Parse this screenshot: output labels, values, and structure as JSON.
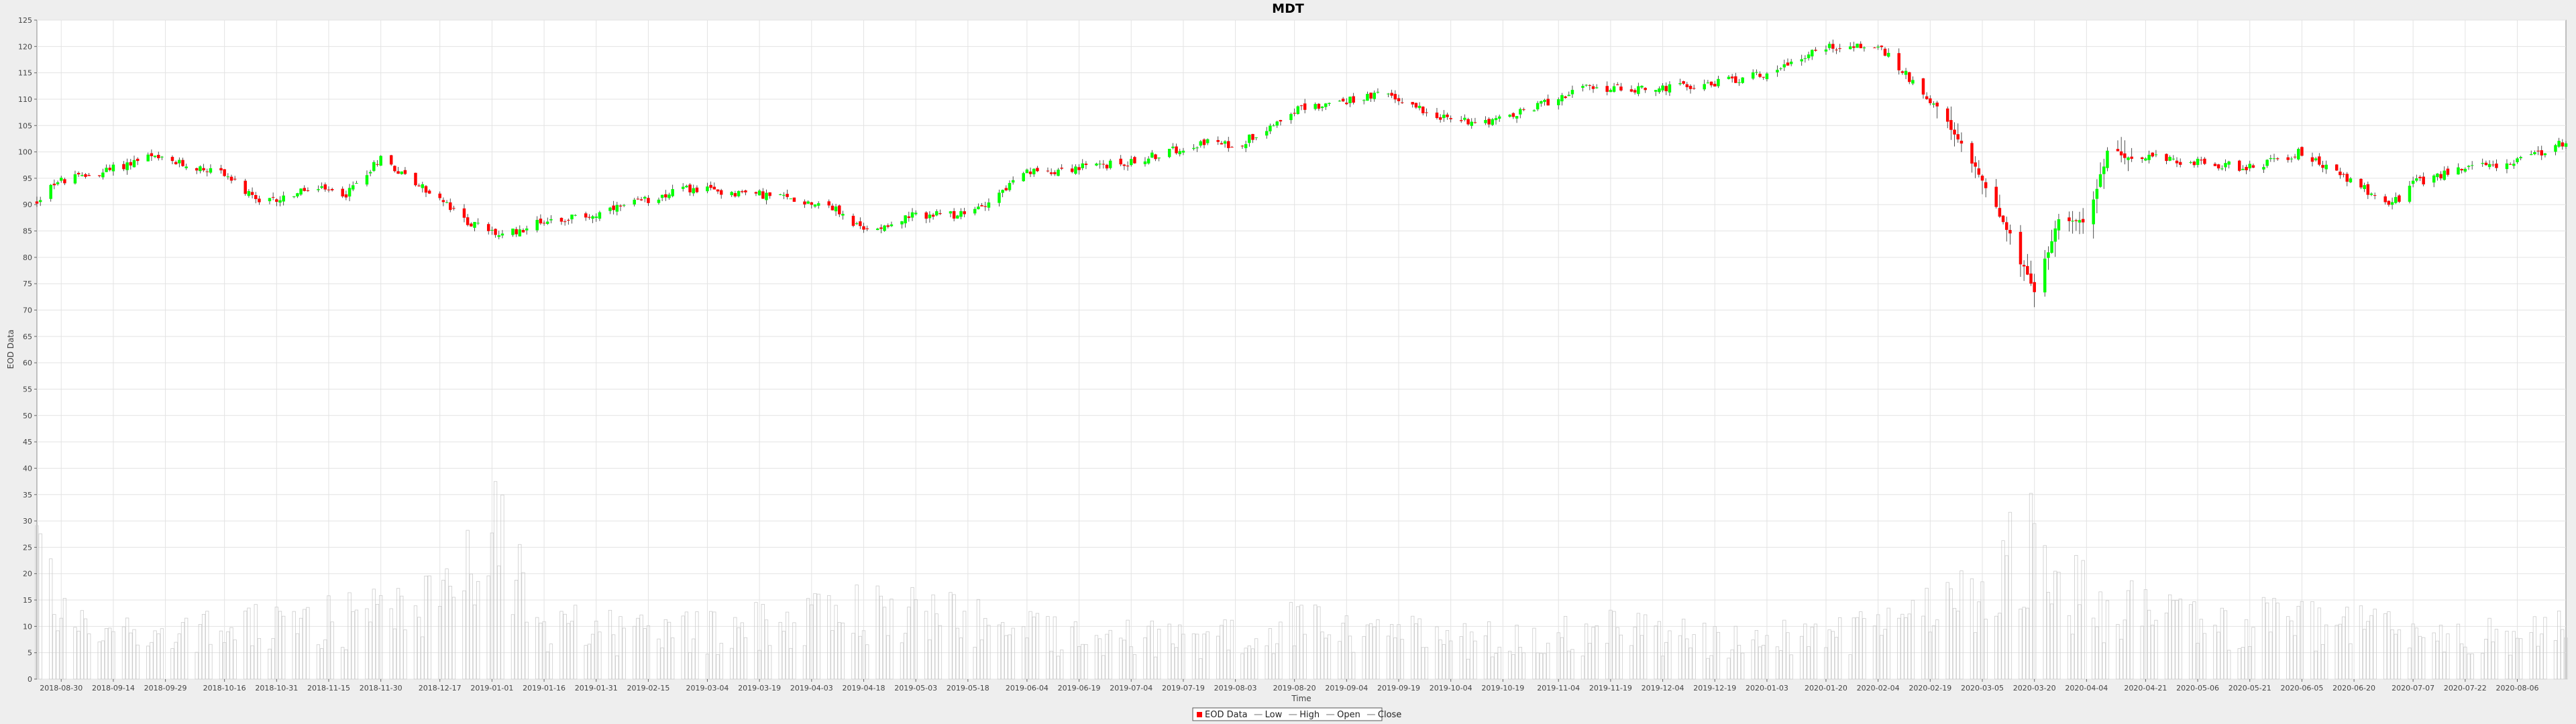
{
  "chart_data": {
    "type": "candlestick",
    "title": "MDT",
    "xlabel": "Time",
    "ylabel": "EOD Data",
    "ylim": [
      0,
      125
    ],
    "y_ticks": [
      0,
      5,
      10,
      15,
      20,
      25,
      30,
      35,
      40,
      45,
      50,
      55,
      60,
      65,
      70,
      75,
      80,
      85,
      90,
      95,
      100,
      105,
      110,
      115,
      120,
      125
    ],
    "x_ticks": [
      "2018-08-30",
      "2018-09-14",
      "2018-09-29",
      "2018-10-16",
      "2018-10-31",
      "2018-11-15",
      "2018-11-30",
      "2018-12-17",
      "2019-01-01",
      "2019-01-16",
      "2019-01-31",
      "2019-02-15",
      "2019-03-04",
      "2019-03-19",
      "2019-04-03",
      "2019-04-18",
      "2019-05-03",
      "2019-05-18",
      "2019-06-04",
      "2019-06-19",
      "2019-07-04",
      "2019-07-19",
      "2019-08-03",
      "2019-08-20",
      "2019-09-04",
      "2019-09-19",
      "2019-10-04",
      "2019-10-19",
      "2019-11-04",
      "2019-11-19",
      "2019-12-04",
      "2019-12-19",
      "2020-01-03",
      "2020-01-20",
      "2020-02-04",
      "2020-02-19",
      "2020-03-05",
      "2020-03-20",
      "2020-04-04",
      "2020-04-21",
      "2020-05-06",
      "2020-05-21",
      "2020-06-05",
      "2020-06-20",
      "2020-07-07",
      "2020-07-22",
      "2020-08-06"
    ],
    "x_range": [
      "2018-08-23",
      "2020-08-20"
    ],
    "close_anchors": [
      [
        "2018-08-23",
        90.5
      ],
      [
        "2018-08-27",
        94
      ],
      [
        "2018-09-10",
        96
      ],
      [
        "2018-09-24",
        99
      ],
      [
        "2018-10-01",
        98
      ],
      [
        "2018-10-16",
        96
      ],
      [
        "2018-10-26",
        90
      ],
      [
        "2018-11-10",
        93
      ],
      [
        "2018-11-20",
        92
      ],
      [
        "2018-11-30",
        99
      ],
      [
        "2018-12-08",
        95
      ],
      [
        "2018-12-17",
        91
      ],
      [
        "2018-12-24",
        87
      ],
      [
        "2019-01-04",
        84
      ],
      [
        "2019-01-16",
        87
      ],
      [
        "2019-01-31",
        88
      ],
      [
        "2019-02-25",
        93
      ],
      [
        "2019-03-19",
        92
      ],
      [
        "2019-04-08",
        90
      ],
      [
        "2019-04-18",
        85
      ],
      [
        "2019-05-03",
        88
      ],
      [
        "2019-05-18",
        88
      ],
      [
        "2019-06-04",
        96
      ],
      [
        "2019-07-04",
        98
      ],
      [
        "2019-07-25",
        102
      ],
      [
        "2019-08-03",
        101
      ],
      [
        "2019-08-20",
        108
      ],
      [
        "2019-09-15",
        111
      ],
      [
        "2019-10-04",
        106
      ],
      [
        "2019-10-19",
        106
      ],
      [
        "2019-11-10",
        112
      ],
      [
        "2019-12-04",
        112
      ],
      [
        "2019-12-19",
        113
      ],
      [
        "2020-01-03",
        115
      ],
      [
        "2020-01-20",
        120
      ],
      [
        "2020-02-04",
        120
      ],
      [
        "2020-02-19",
        110
      ],
      [
        "2020-03-05",
        95
      ],
      [
        "2020-03-13",
        84
      ],
      [
        "2020-03-20",
        73
      ],
      [
        "2020-03-27",
        88
      ],
      [
        "2020-04-04",
        86
      ],
      [
        "2020-04-10",
        100
      ],
      [
        "2020-04-21",
        99
      ],
      [
        "2020-05-06",
        98
      ],
      [
        "2020-05-21",
        97
      ],
      [
        "2020-06-05",
        100
      ],
      [
        "2020-06-20",
        94
      ],
      [
        "2020-07-01",
        90
      ],
      [
        "2020-07-07",
        94
      ],
      [
        "2020-07-22",
        97
      ],
      [
        "2020-08-06",
        98
      ],
      [
        "2020-08-20",
        102
      ]
    ],
    "volume_anchors": [
      [
        "2018-08-23",
        28
      ],
      [
        "2018-09-01",
        11
      ],
      [
        "2018-10-01",
        9
      ],
      [
        "2018-11-01",
        11
      ],
      [
        "2018-12-01",
        13
      ],
      [
        "2018-12-24",
        20
      ],
      [
        "2019-01-02",
        33
      ],
      [
        "2019-01-16",
        11
      ],
      [
        "2019-02-15",
        9
      ],
      [
        "2019-03-04",
        10
      ],
      [
        "2019-04-18",
        14
      ],
      [
        "2019-05-20",
        12
      ],
      [
        "2019-06-04",
        10
      ],
      [
        "2019-07-19",
        8
      ],
      [
        "2019-08-20",
        11
      ],
      [
        "2019-09-19",
        9
      ],
      [
        "2019-10-19",
        8
      ],
      [
        "2019-11-19",
        10
      ],
      [
        "2019-12-19",
        8
      ],
      [
        "2020-01-20",
        9
      ],
      [
        "2020-02-19",
        13
      ],
      [
        "2020-03-05",
        20
      ],
      [
        "2020-03-20",
        27
      ],
      [
        "2020-04-04",
        16
      ],
      [
        "2020-05-06",
        11
      ],
      [
        "2020-06-05",
        12
      ],
      [
        "2020-07-07",
        9
      ],
      [
        "2020-08-06",
        9
      ],
      [
        "2020-08-20",
        10
      ]
    ],
    "colors": {
      "up": "#00ff00",
      "down": "#ff0000",
      "wick": "#222222",
      "volume": "#cccccc",
      "grid": "#e3e3e3",
      "plot_bg": "#ffffff",
      "page_bg": "#eeeeee"
    },
    "legend_position": "bottom-center",
    "legend": [
      {
        "label": "EOD Data",
        "color": "#ff0000",
        "kind": "square"
      },
      {
        "label": "Low",
        "color": "#999999",
        "kind": "line"
      },
      {
        "label": "High",
        "color": "#999999",
        "kind": "line"
      },
      {
        "label": "Open",
        "color": "#999999",
        "kind": "line"
      },
      {
        "label": "Close",
        "color": "#999999",
        "kind": "line"
      }
    ],
    "grid": true
  }
}
